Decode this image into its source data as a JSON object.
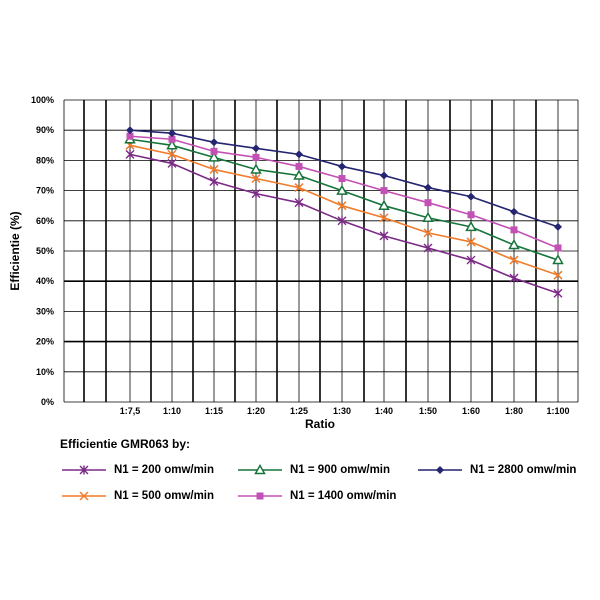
{
  "chart_data": {
    "type": "line",
    "title": "",
    "xlabel": "Ratio",
    "ylabel": "Efficientie (%)",
    "categories": [
      "1:7,5",
      "1:10",
      "1:15",
      "1:20",
      "1:25",
      "1:30",
      "1:40",
      "1:50",
      "1:60",
      "1:80",
      "1:100"
    ],
    "y_ticks": [
      "0%",
      "10%",
      "20%",
      "30%",
      "40%",
      "50%",
      "60%",
      "70%",
      "80%",
      "90%",
      "100%"
    ],
    "ylim": [
      0,
      100
    ],
    "grid": true,
    "legend_title": "Efficientie GMR063 by:",
    "series": [
      {
        "name": "N1 = 200 omw/min",
        "color": "#7b2a86",
        "marker": "star",
        "values": [
          82,
          79,
          73,
          69,
          66,
          60,
          55,
          51,
          47,
          41,
          36
        ]
      },
      {
        "name": "N1 = 500 omw/min",
        "color": "#f07c2c",
        "marker": "x",
        "values": [
          85,
          82,
          77,
          74,
          71,
          65,
          61,
          56,
          53,
          47,
          42
        ]
      },
      {
        "name": "N1 = 900 omw/min",
        "color": "#16743a",
        "marker": "triangle",
        "values": [
          87,
          85,
          81,
          77,
          75,
          70,
          65,
          61,
          58,
          52,
          47
        ]
      },
      {
        "name": "N1 = 1400 omw/min",
        "color": "#c351b5",
        "marker": "square",
        "values": [
          88,
          87,
          83,
          81,
          78,
          74,
          70,
          66,
          62,
          57,
          51
        ]
      },
      {
        "name": "N1 = 2800 omw/min",
        "color": "#252571",
        "marker": "diamond",
        "values": [
          90,
          89,
          86,
          84,
          82,
          78,
          75,
          71,
          68,
          63,
          58
        ]
      }
    ]
  }
}
